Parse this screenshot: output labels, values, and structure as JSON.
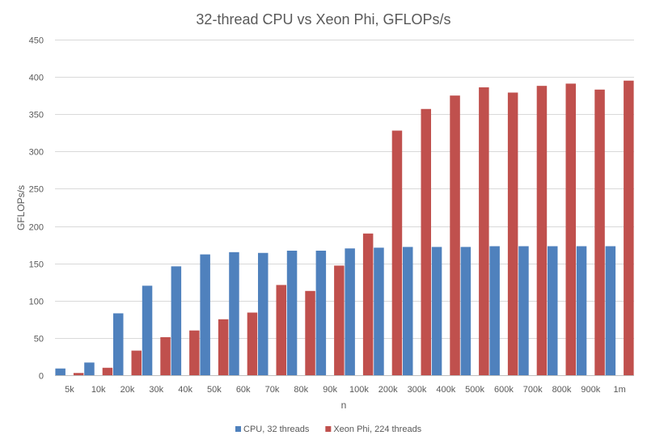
{
  "chart_data": {
    "type": "bar",
    "title": "32-thread CPU vs Xeon Phi, GFLOPs/s",
    "xlabel": "n",
    "ylabel": "GFLOPs/s",
    "ylim": [
      0,
      450
    ],
    "yticks": [
      0,
      50,
      100,
      150,
      200,
      250,
      300,
      350,
      400,
      450
    ],
    "grid": true,
    "legend_position": "bottom",
    "categories": [
      "5k",
      "10k",
      "20k",
      "30k",
      "40k",
      "50k",
      "60k",
      "70k",
      "80k",
      "90k",
      "100k",
      "200k",
      "300k",
      "400k",
      "500k",
      "600k",
      "700k",
      "800k",
      "900k",
      "1m"
    ],
    "series": [
      {
        "name": "CPU, 32 threads",
        "color": "#4f81bd",
        "values": [
          9,
          17,
          83,
          120,
          146,
          162,
          165,
          164,
          167,
          167,
          170,
          171,
          172,
          172,
          172,
          173,
          173,
          173,
          173,
          173
        ]
      },
      {
        "name": "Xeon Phi, 224 threads",
        "color": "#c0504d",
        "values": [
          3,
          10,
          33,
          51,
          60,
          75,
          84,
          121,
          113,
          147,
          190,
          328,
          357,
          375,
          386,
          379,
          388,
          391,
          383,
          395
        ]
      }
    ]
  }
}
